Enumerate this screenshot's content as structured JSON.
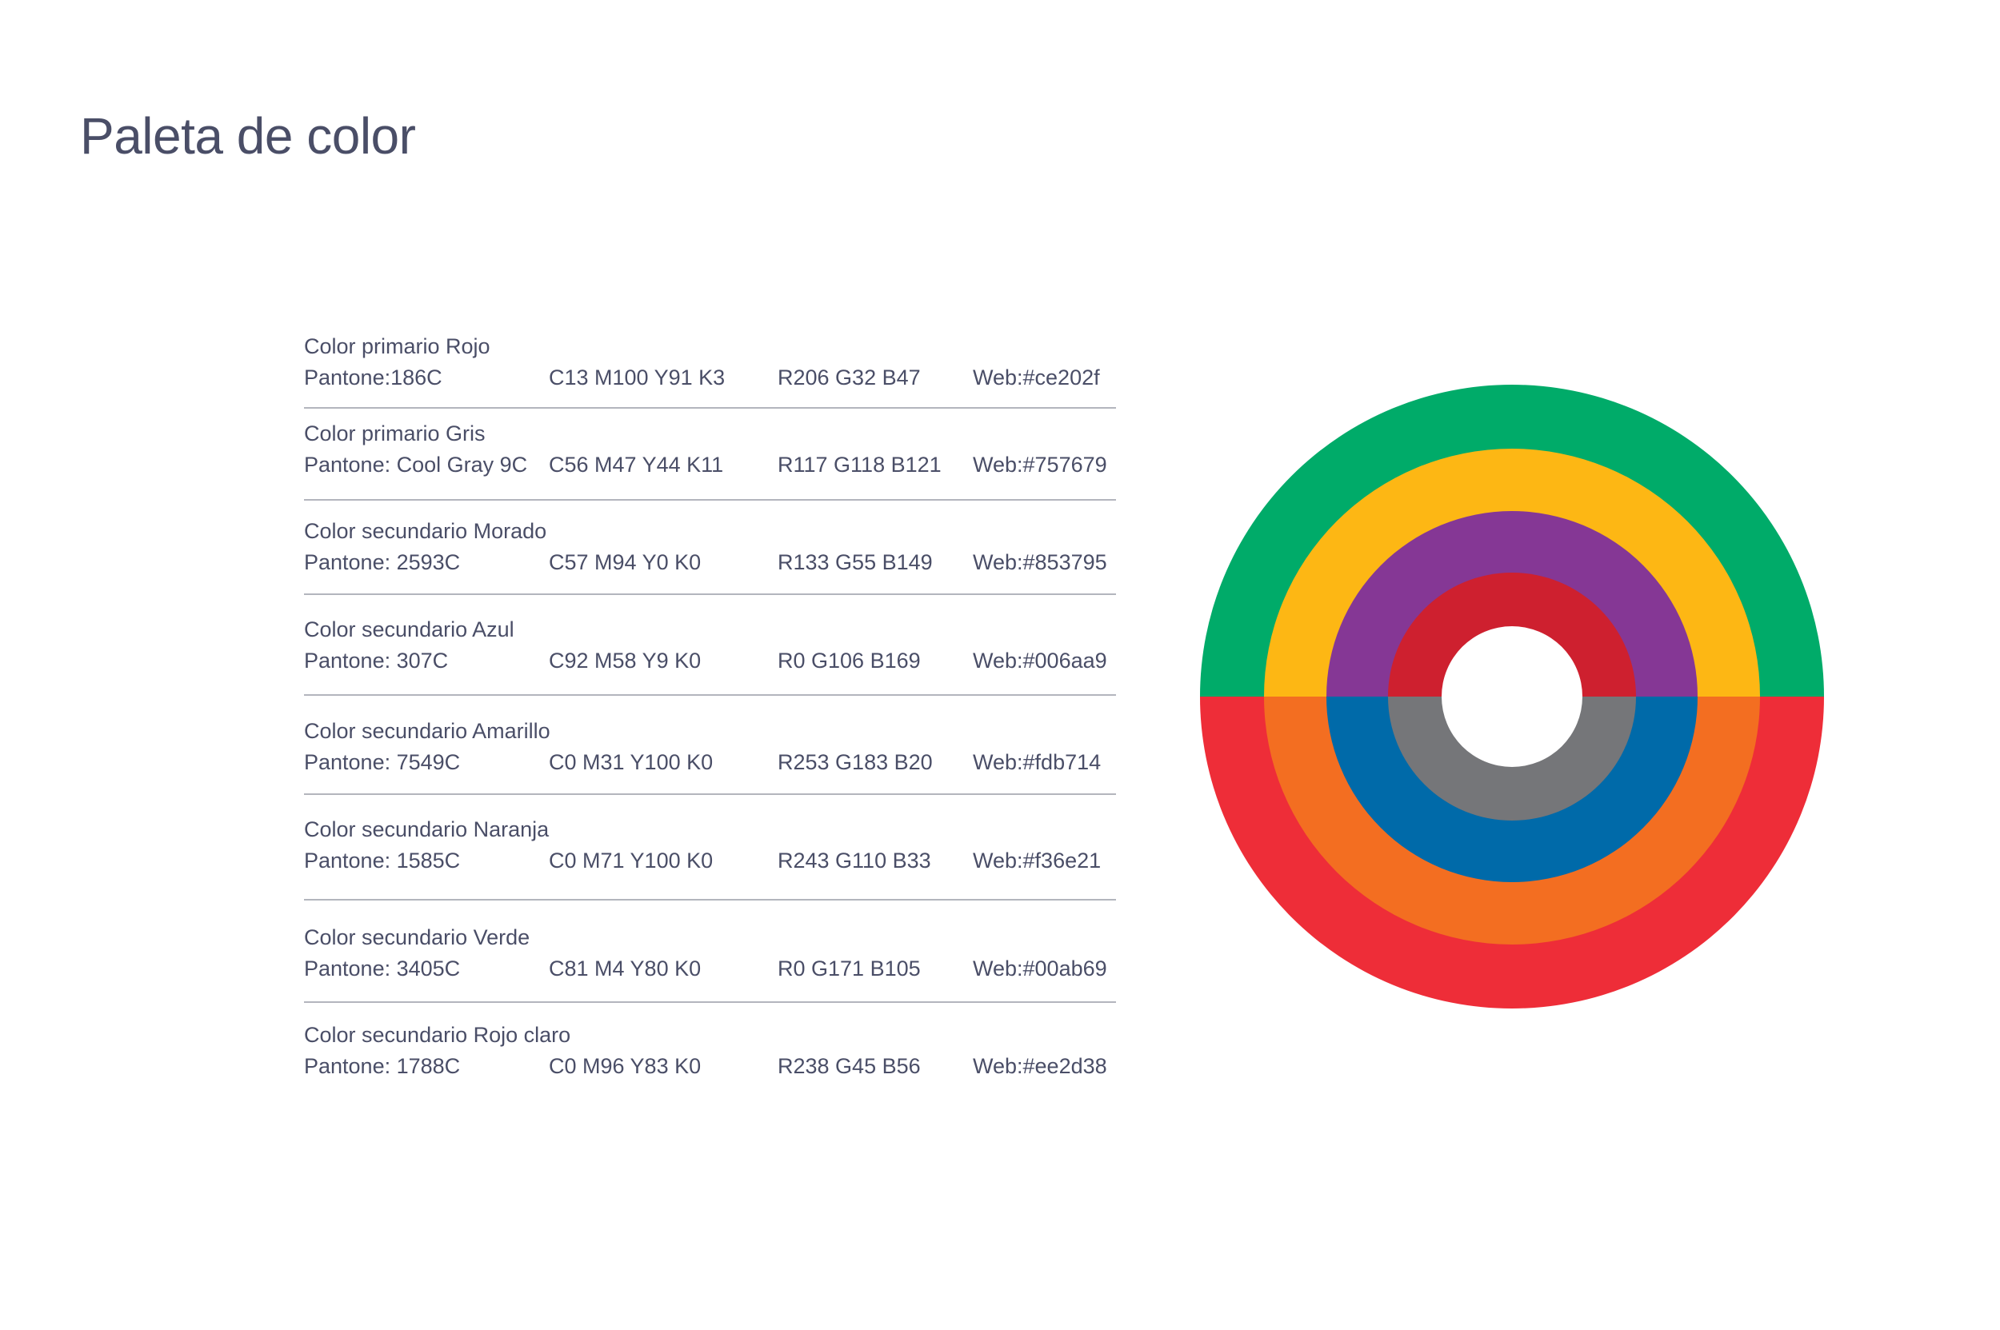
{
  "page": {
    "title": "Paleta de color"
  },
  "colors": [
    {
      "name": "Color primario Rojo",
      "pantone": "Pantone:186C",
      "cmyk": "C13 M100 Y91 K3",
      "rgb": "R206  G32  B47",
      "web": "Web:#ce202f",
      "hex": "#ce202f"
    },
    {
      "name": "Color primario Gris",
      "pantone": "Pantone: Cool Gray 9C",
      "cmyk": "C56 M47 Y44 K11",
      "rgb": "R117  G118  B121",
      "web": "Web:#757679",
      "hex": "#757679"
    },
    {
      "name": "Color secundario Morado",
      "pantone": "Pantone: 2593C",
      "cmyk": "C57 M94 Y0 K0",
      "rgb": "R133  G55  B149",
      "web": "Web:#853795",
      "hex": "#853795"
    },
    {
      "name": "Color secundario Azul",
      "pantone": "Pantone: 307C",
      "cmyk": "C92 M58 Y9 K0",
      "rgb": "R0  G106  B169",
      "web": "Web:#006aa9",
      "hex": "#006aa9"
    },
    {
      "name": "Color secundario Amarillo",
      "pantone": "Pantone: 7549C",
      "cmyk": "C0 M31 Y100 K0",
      "rgb": "R253  G183  B20",
      "web": "Web:#fdb714",
      "hex": "#fdb714"
    },
    {
      "name": "Color secundario Naranja",
      "pantone": "Pantone: 1585C",
      "cmyk": "C0 M71 Y100 K0",
      "rgb": "R243  G110  B33",
      "web": "Web:#f36e21",
      "hex": "#f36e21"
    },
    {
      "name": "Color secundario Verde",
      "pantone": "Pantone: 3405C",
      "cmyk": "C81 M4 Y80 K0",
      "rgb": "R0  G171  B105",
      "web": "Web:#00ab69",
      "hex": "#00ab69"
    },
    {
      "name": "Color secundario Rojo claro",
      "pantone": "Pantone: 1788C",
      "cmyk": "C0 M96 Y83 K0",
      "rgb": "R238  G45  B56",
      "web": "Web:#ee2d38",
      "hex": "#ee2d38"
    }
  ],
  "rings": {
    "top": [
      "#00ab69",
      "#fdb714",
      "#853795",
      "#ce202f"
    ],
    "bottom": [
      "#ee2d38",
      "#f36e21",
      "#006aa9",
      "#757679"
    ]
  },
  "style": {
    "text_color": "#4a4e67",
    "divider_color": "#b3b5bd",
    "background": "#ffffff"
  }
}
